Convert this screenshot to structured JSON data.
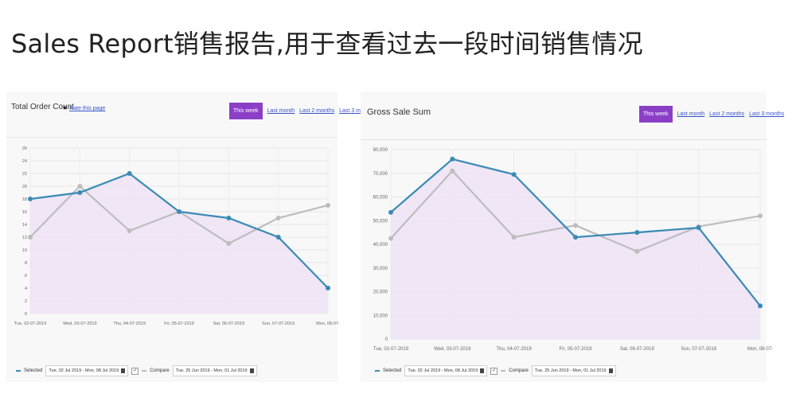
{
  "headline": "Sales Report销售报告,用于查看过去一段时间销售情况",
  "ranges": [
    "This week",
    "Last month",
    "Last 2 months",
    "Last 3 months"
  ],
  "rate_label": "Rate this page",
  "legend": {
    "selected_label": "Selected",
    "selected_range": "Tue, 02 Jul 2019 - Mon, 08 Jul 2019",
    "compare_label": "Compare",
    "compare_range": "Tue, 25 Jun 2019 - Mon, 01 Jul 2019"
  },
  "colors": {
    "selected": "#3a8bb5",
    "compare": "#bdbdbd",
    "fill": "#efe3f6",
    "accent": "#8b3fc6"
  },
  "chart_data": [
    {
      "type": "line",
      "title": "Total Order Count",
      "categories": [
        "Tue, 02-07-2019",
        "Wed, 03-07-2019",
        "Thu, 04-07-2019",
        "Fri, 05-07-2019",
        "Sat, 06-07-2019",
        "Sun, 07-07-2019",
        "Mon, 08-07-"
      ],
      "series": [
        {
          "name": "Selected",
          "values": [
            18,
            19,
            22,
            16,
            15,
            12,
            4
          ]
        },
        {
          "name": "Compare",
          "values": [
            12,
            20,
            13,
            16,
            11,
            15,
            17
          ]
        }
      ],
      "ylim": [
        0,
        26
      ],
      "yticks": [
        "0",
        "2",
        "4",
        "6",
        "8",
        "10",
        "12",
        "14",
        "16",
        "18",
        "20",
        "22",
        "24",
        "26"
      ],
      "grid": true,
      "area_fill": true
    },
    {
      "type": "line",
      "title": "Gross Sale Sum",
      "categories": [
        "Tue, 02-07-2019",
        "Wed, 03-07-2019",
        "Thu, 04-07-2019",
        "Fri, 05-07-2019",
        "Sat, 06-07-2019",
        "Sun, 07-07-2019",
        "Mon, 08-07-"
      ],
      "series": [
        {
          "name": "Selected",
          "values": [
            53500,
            76000,
            69500,
            43000,
            45000,
            47000,
            14000
          ]
        },
        {
          "name": "Compare",
          "values": [
            42500,
            71000,
            43000,
            48000,
            37000,
            47500,
            52000
          ]
        }
      ],
      "ylim": [
        0,
        80000
      ],
      "yticks": [
        "0",
        "10,000",
        "20,000",
        "30,000",
        "40,000",
        "50,000",
        "60,000",
        "70,000",
        "80,000"
      ],
      "grid": true,
      "area_fill": true
    }
  ]
}
